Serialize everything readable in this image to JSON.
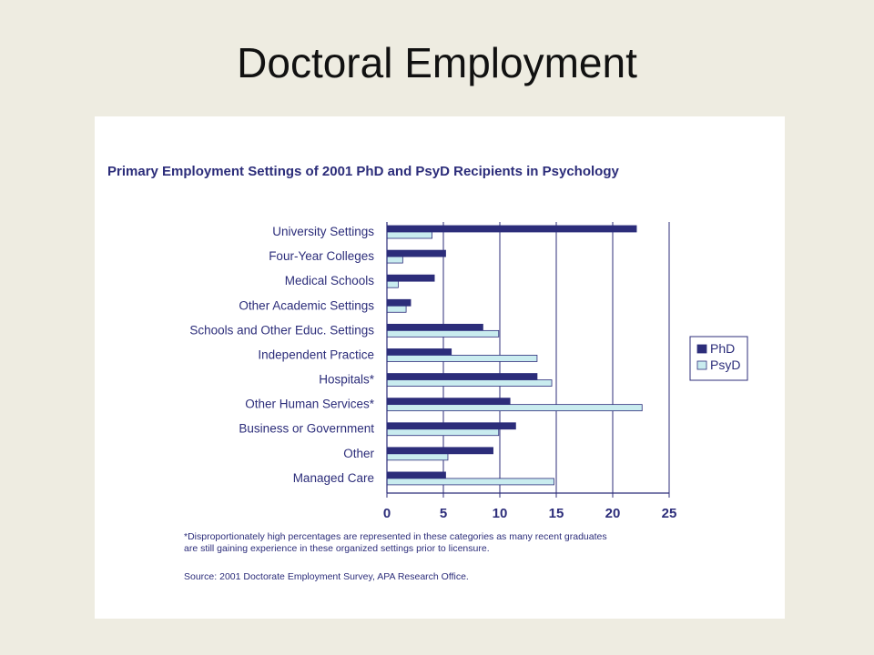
{
  "slide": {
    "title": "Doctoral Employment"
  },
  "chart_data": {
    "type": "bar",
    "orientation": "horizontal",
    "title": "Primary Employment Settings of 2001 PhD and PsyD Recipients in Psychology",
    "categories": [
      "University Settings",
      "Four-Year Colleges",
      "Medical Schools",
      "Other Academic Settings",
      "Schools and Other Educ. Settings",
      "Independent Practice",
      "Hospitals*",
      "Other Human Services*",
      "Business or Government",
      "Other",
      "Managed Care"
    ],
    "series": [
      {
        "name": "PhD",
        "color": "#2c2d7a",
        "values": [
          22.1,
          5.2,
          4.2,
          2.1,
          8.5,
          5.7,
          13.3,
          10.9,
          11.4,
          9.4,
          5.2
        ]
      },
      {
        "name": "PsyD",
        "color": "#c9ecef",
        "values": [
          4.0,
          1.4,
          1.0,
          1.7,
          9.9,
          13.3,
          14.6,
          22.6,
          9.9,
          5.4,
          14.8
        ]
      }
    ],
    "xlim": [
      0,
      25
    ],
    "xticks": [
      0,
      5,
      10,
      15,
      20,
      25
    ],
    "grid": true,
    "legend_position": "right",
    "footnote_lines": [
      "*Disproportionately high percentages are represented in these categories as many recent graduates",
      "are still gaining experience in these organized settings prior to licensure."
    ],
    "source": "Source: 2001 Doctorate Employment Survey, APA Research Office."
  }
}
